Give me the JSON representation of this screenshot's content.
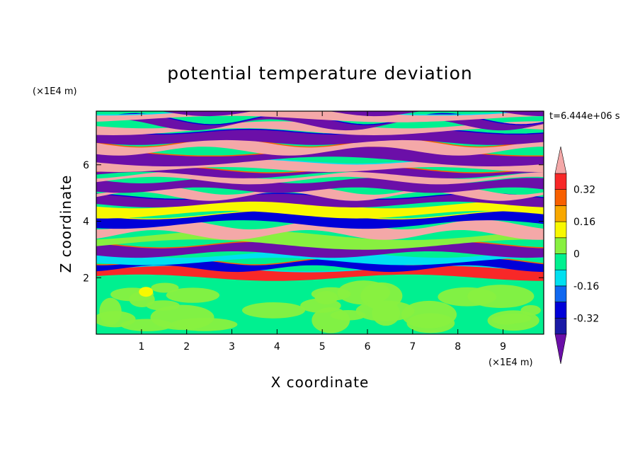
{
  "chart_data": {
    "type": "heatmap",
    "title": "potential temperature deviation",
    "xlabel": "X coordinate",
    "ylabel": "Z coordinate",
    "x_unit": "(×1E4 m)",
    "y_unit": "(×1E4 m)",
    "time_label": "t=6.444e+06 s",
    "xlim": [
      0,
      9.9
    ],
    "ylim": [
      0,
      7.9
    ],
    "x_ticks": [
      1,
      2,
      3,
      4,
      5,
      6,
      7,
      8,
      9
    ],
    "y_ticks": [
      2,
      4,
      6
    ],
    "colorbar": {
      "levels": [
        -0.4,
        -0.32,
        -0.24,
        -0.16,
        -0.08,
        0,
        0.08,
        0.16,
        0.24,
        0.32,
        0.4
      ],
      "colors": [
        "#6b0fa8",
        "#1a1aa6",
        "#0000d8",
        "#1068f0",
        "#00e0f0",
        "#00f090",
        "#88f040",
        "#f8f800",
        "#f8a800",
        "#f86000",
        "#f82828",
        "#f4a8a8"
      ],
      "tick_labels": [
        "0.32",
        "0.16",
        "0",
        "-0.16",
        "-0.32"
      ],
      "tick_values": [
        0.32,
        0.16,
        0,
        -0.16,
        -0.32
      ],
      "extend": "both"
    }
  }
}
